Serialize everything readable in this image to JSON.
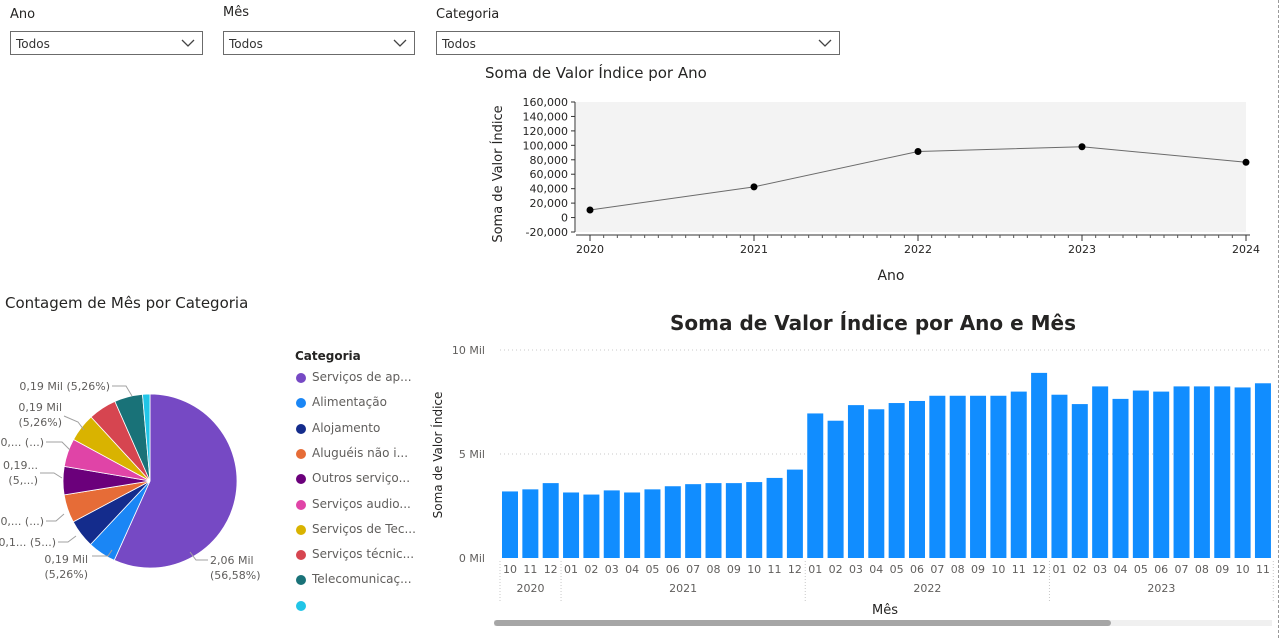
{
  "filters": {
    "ano": {
      "label": "Ano",
      "value": "Todos"
    },
    "mes": {
      "label": "Mês",
      "value": "Todos"
    },
    "categoria": {
      "label": "Categoria",
      "value": "Todos"
    }
  },
  "line_chart": {
    "title": "Soma de Valor Índice por Ano",
    "xlabel": "Ano",
    "ylabel": "Soma de Valor Índice"
  },
  "pie_chart": {
    "title": "Contagem de Mês por Categoria",
    "legend_title": "Categoria",
    "legend": [
      {
        "label": "Serviços de ap...",
        "color": "#7649c4"
      },
      {
        "label": "Alimentação",
        "color": "#1a86f5"
      },
      {
        "label": "Alojamento",
        "color": "#142c8c"
      },
      {
        "label": "Aluguéis não i...",
        "color": "#e66c37"
      },
      {
        "label": "Outros serviço...",
        "color": "#6b007b"
      },
      {
        "label": "Serviços audio...",
        "color": "#e044a7"
      },
      {
        "label": "Serviços de Tec...",
        "color": "#d9b300"
      },
      {
        "label": "Serviços técnic...",
        "color": "#d64550"
      },
      {
        "label": "Telecomunicaç...",
        "color": "#197278"
      },
      {
        "label": "",
        "color": "#21c5e7"
      }
    ],
    "labels": [
      {
        "lines": [
          "2,06 Mil",
          "(56,58%)"
        ]
      },
      {
        "lines": [
          "0,19 Mil",
          "(5,26%)"
        ]
      },
      {
        "lines": [
          "0,1... (5...)"
        ]
      },
      {
        "lines": [
          "0,... (...)"
        ]
      },
      {
        "lines": [
          "0,19...",
          "(5,...)"
        ]
      },
      {
        "lines": [
          "0,... (...)"
        ]
      },
      {
        "lines": [
          "0,19 Mil",
          "(5,26%)"
        ]
      },
      {
        "lines": [
          "0,19 Mil (5,26%)"
        ]
      }
    ]
  },
  "bar_chart": {
    "title": "Soma de Valor Índice por Ano e Mês",
    "xlabel": "Mês",
    "ylabel": "Soma de Valor Índice"
  },
  "chart_data": [
    {
      "type": "line",
      "title": "Soma de Valor Índice por Ano",
      "xlabel": "Ano",
      "ylabel": "Soma de Valor Índice",
      "x": [
        "2020",
        "2021",
        "2022",
        "2023",
        "2024"
      ],
      "values": [
        10500,
        42500,
        91500,
        98000,
        76500
      ],
      "ylim": [
        -20000,
        160000
      ],
      "yticks": [
        "-20,000",
        "0",
        "20,000",
        "40,000",
        "60,000",
        "80,000",
        "100,000",
        "120,000",
        "140,000",
        "160,000"
      ],
      "line_color": "#6b6b6b",
      "marker_color": "#000000"
    },
    {
      "type": "pie",
      "title": "Contagem de Mês por Categoria",
      "slices": [
        {
          "name": "Serviços de ap...",
          "value": 2060,
          "color": "#7649c4"
        },
        {
          "name": "Alimentação",
          "value": 190,
          "color": "#1a86f5"
        },
        {
          "name": "Alojamento",
          "value": 190,
          "color": "#142c8c"
        },
        {
          "name": "Aluguéis não i...",
          "value": 190,
          "color": "#e66c37"
        },
        {
          "name": "Outros serviço...",
          "value": 190,
          "color": "#6b007b"
        },
        {
          "name": "Serviços audio...",
          "value": 190,
          "color": "#e044a7"
        },
        {
          "name": "Serviços de Tec...",
          "value": 190,
          "color": "#d9b300"
        },
        {
          "name": "Serviços técnic...",
          "value": 190,
          "color": "#d64550"
        },
        {
          "name": "Telecomunicaç...",
          "value": 190,
          "color": "#197278"
        },
        {
          "name": "",
          "value": 50,
          "color": "#21c5e7"
        }
      ]
    },
    {
      "type": "bar",
      "title": "Soma de Valor Índice por Ano e Mês",
      "xlabel": "Mês",
      "ylabel": "Soma de Valor Índice",
      "ylim": [
        0,
        10000
      ],
      "yticks": [
        {
          "value": 0,
          "label": "0 Mil"
        },
        {
          "value": 5000,
          "label": "5 Mil"
        },
        {
          "value": 10000,
          "label": "10 Mil"
        }
      ],
      "color": "#118dff",
      "categories": [
        "10",
        "11",
        "12",
        "01",
        "02",
        "03",
        "04",
        "05",
        "06",
        "07",
        "08",
        "09",
        "10",
        "11",
        "12",
        "01",
        "02",
        "03",
        "04",
        "05",
        "06",
        "07",
        "08",
        "09",
        "10",
        "11",
        "12",
        "01",
        "02",
        "03",
        "04",
        "05",
        "06",
        "07",
        "08",
        "09",
        "10",
        "11"
      ],
      "years": [
        {
          "label": "2020",
          "count": 3
        },
        {
          "label": "2021",
          "count": 12
        },
        {
          "label": "2022",
          "count": 12
        },
        {
          "label": "2023",
          "count": 11
        }
      ],
      "values": [
        3200,
        3300,
        3600,
        3150,
        3050,
        3250,
        3150,
        3300,
        3450,
        3550,
        3600,
        3600,
        3650,
        3850,
        4250,
        6950,
        6600,
        7350,
        7150,
        7450,
        7550,
        7800,
        7800,
        7800,
        7800,
        8000,
        8900,
        7850,
        7400,
        8250,
        7650,
        8050,
        8000,
        8250,
        8250,
        8250,
        8200,
        8400
      ]
    }
  ]
}
